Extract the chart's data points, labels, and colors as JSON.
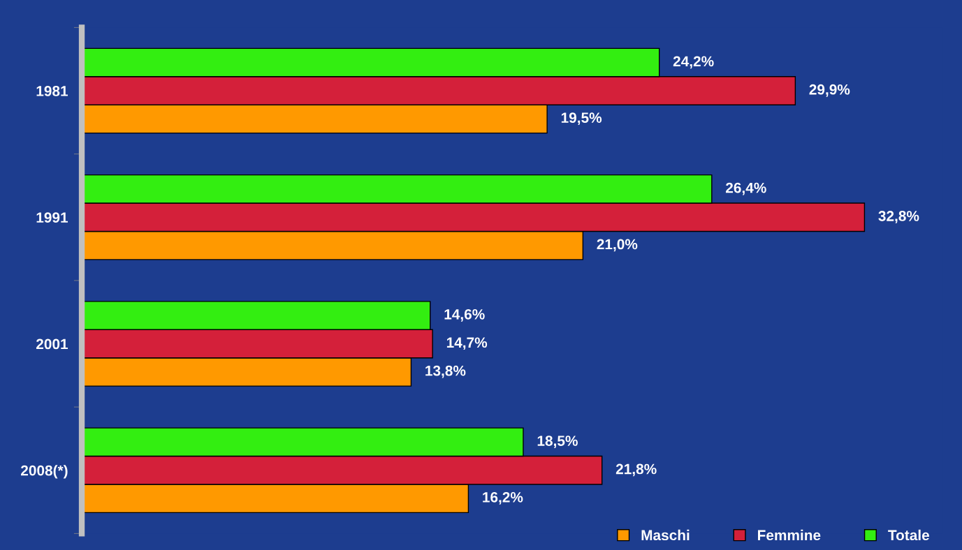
{
  "chart_data": {
    "type": "bar",
    "orientation": "horizontal",
    "categories": [
      "1981",
      "1991",
      "2001",
      "2008(*)"
    ],
    "series": [
      {
        "name": "Maschi",
        "color": "#ff9900",
        "values": [
          19.5,
          21.0,
          13.8,
          16.2
        ],
        "value_labels": [
          "19,5%",
          "21,0%",
          "13,8%",
          "16,2%"
        ]
      },
      {
        "name": "Femmine",
        "color": "#d4203a",
        "values": [
          29.9,
          32.8,
          14.7,
          21.8
        ],
        "value_labels": [
          "29,9%",
          "32,8%",
          "14,7%",
          "21,8%"
        ]
      },
      {
        "name": "Totale",
        "color": "#33ee11",
        "values": [
          24.2,
          26.4,
          14.6,
          18.5
        ],
        "value_labels": [
          "24,2%",
          "26,4%",
          "14,6%",
          "18,5%"
        ]
      }
    ],
    "tick_labels": "y",
    "legend": "bottom right",
    "grid": false
  }
}
